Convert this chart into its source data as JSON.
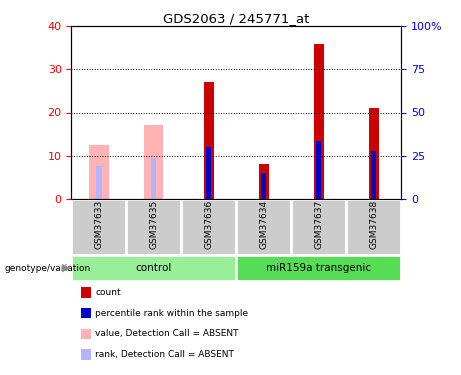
{
  "title": "GDS2063 / 245771_at",
  "samples": [
    "GSM37633",
    "GSM37635",
    "GSM37636",
    "GSM37634",
    "GSM37637",
    "GSM37638"
  ],
  "group_labels": [
    "control",
    "miR159a transgenic"
  ],
  "absent_value": [
    12.5,
    17.0,
    null,
    null,
    null,
    null
  ],
  "absent_rank": [
    7.5,
    9.5,
    null,
    null,
    null,
    null
  ],
  "count": [
    null,
    null,
    27,
    8,
    36,
    21
  ],
  "rank": [
    null,
    null,
    12,
    6,
    13.5,
    11
  ],
  "ylim_left": [
    0,
    40
  ],
  "ylim_right": [
    0,
    100
  ],
  "yticks_left": [
    0,
    10,
    20,
    30,
    40
  ],
  "yticks_right": [
    0,
    25,
    50,
    75,
    100
  ],
  "yticklabels_right": [
    "0",
    "25",
    "50",
    "75",
    "100%"
  ],
  "color_count": "#cc0000",
  "color_rank": "#0000cc",
  "color_absent_value": "#ffb3b3",
  "color_absent_rank": "#b3b3ff",
  "color_group_control": "#99ee99",
  "color_group_transgenic": "#55dd55",
  "legend_items": [
    {
      "label": "count",
      "color": "#cc0000"
    },
    {
      "label": "percentile rank within the sample",
      "color": "#0000cc"
    },
    {
      "label": "value, Detection Call = ABSENT",
      "color": "#ffb3b3"
    },
    {
      "label": "rank, Detection Call = ABSENT",
      "color": "#b3b3ff"
    }
  ]
}
